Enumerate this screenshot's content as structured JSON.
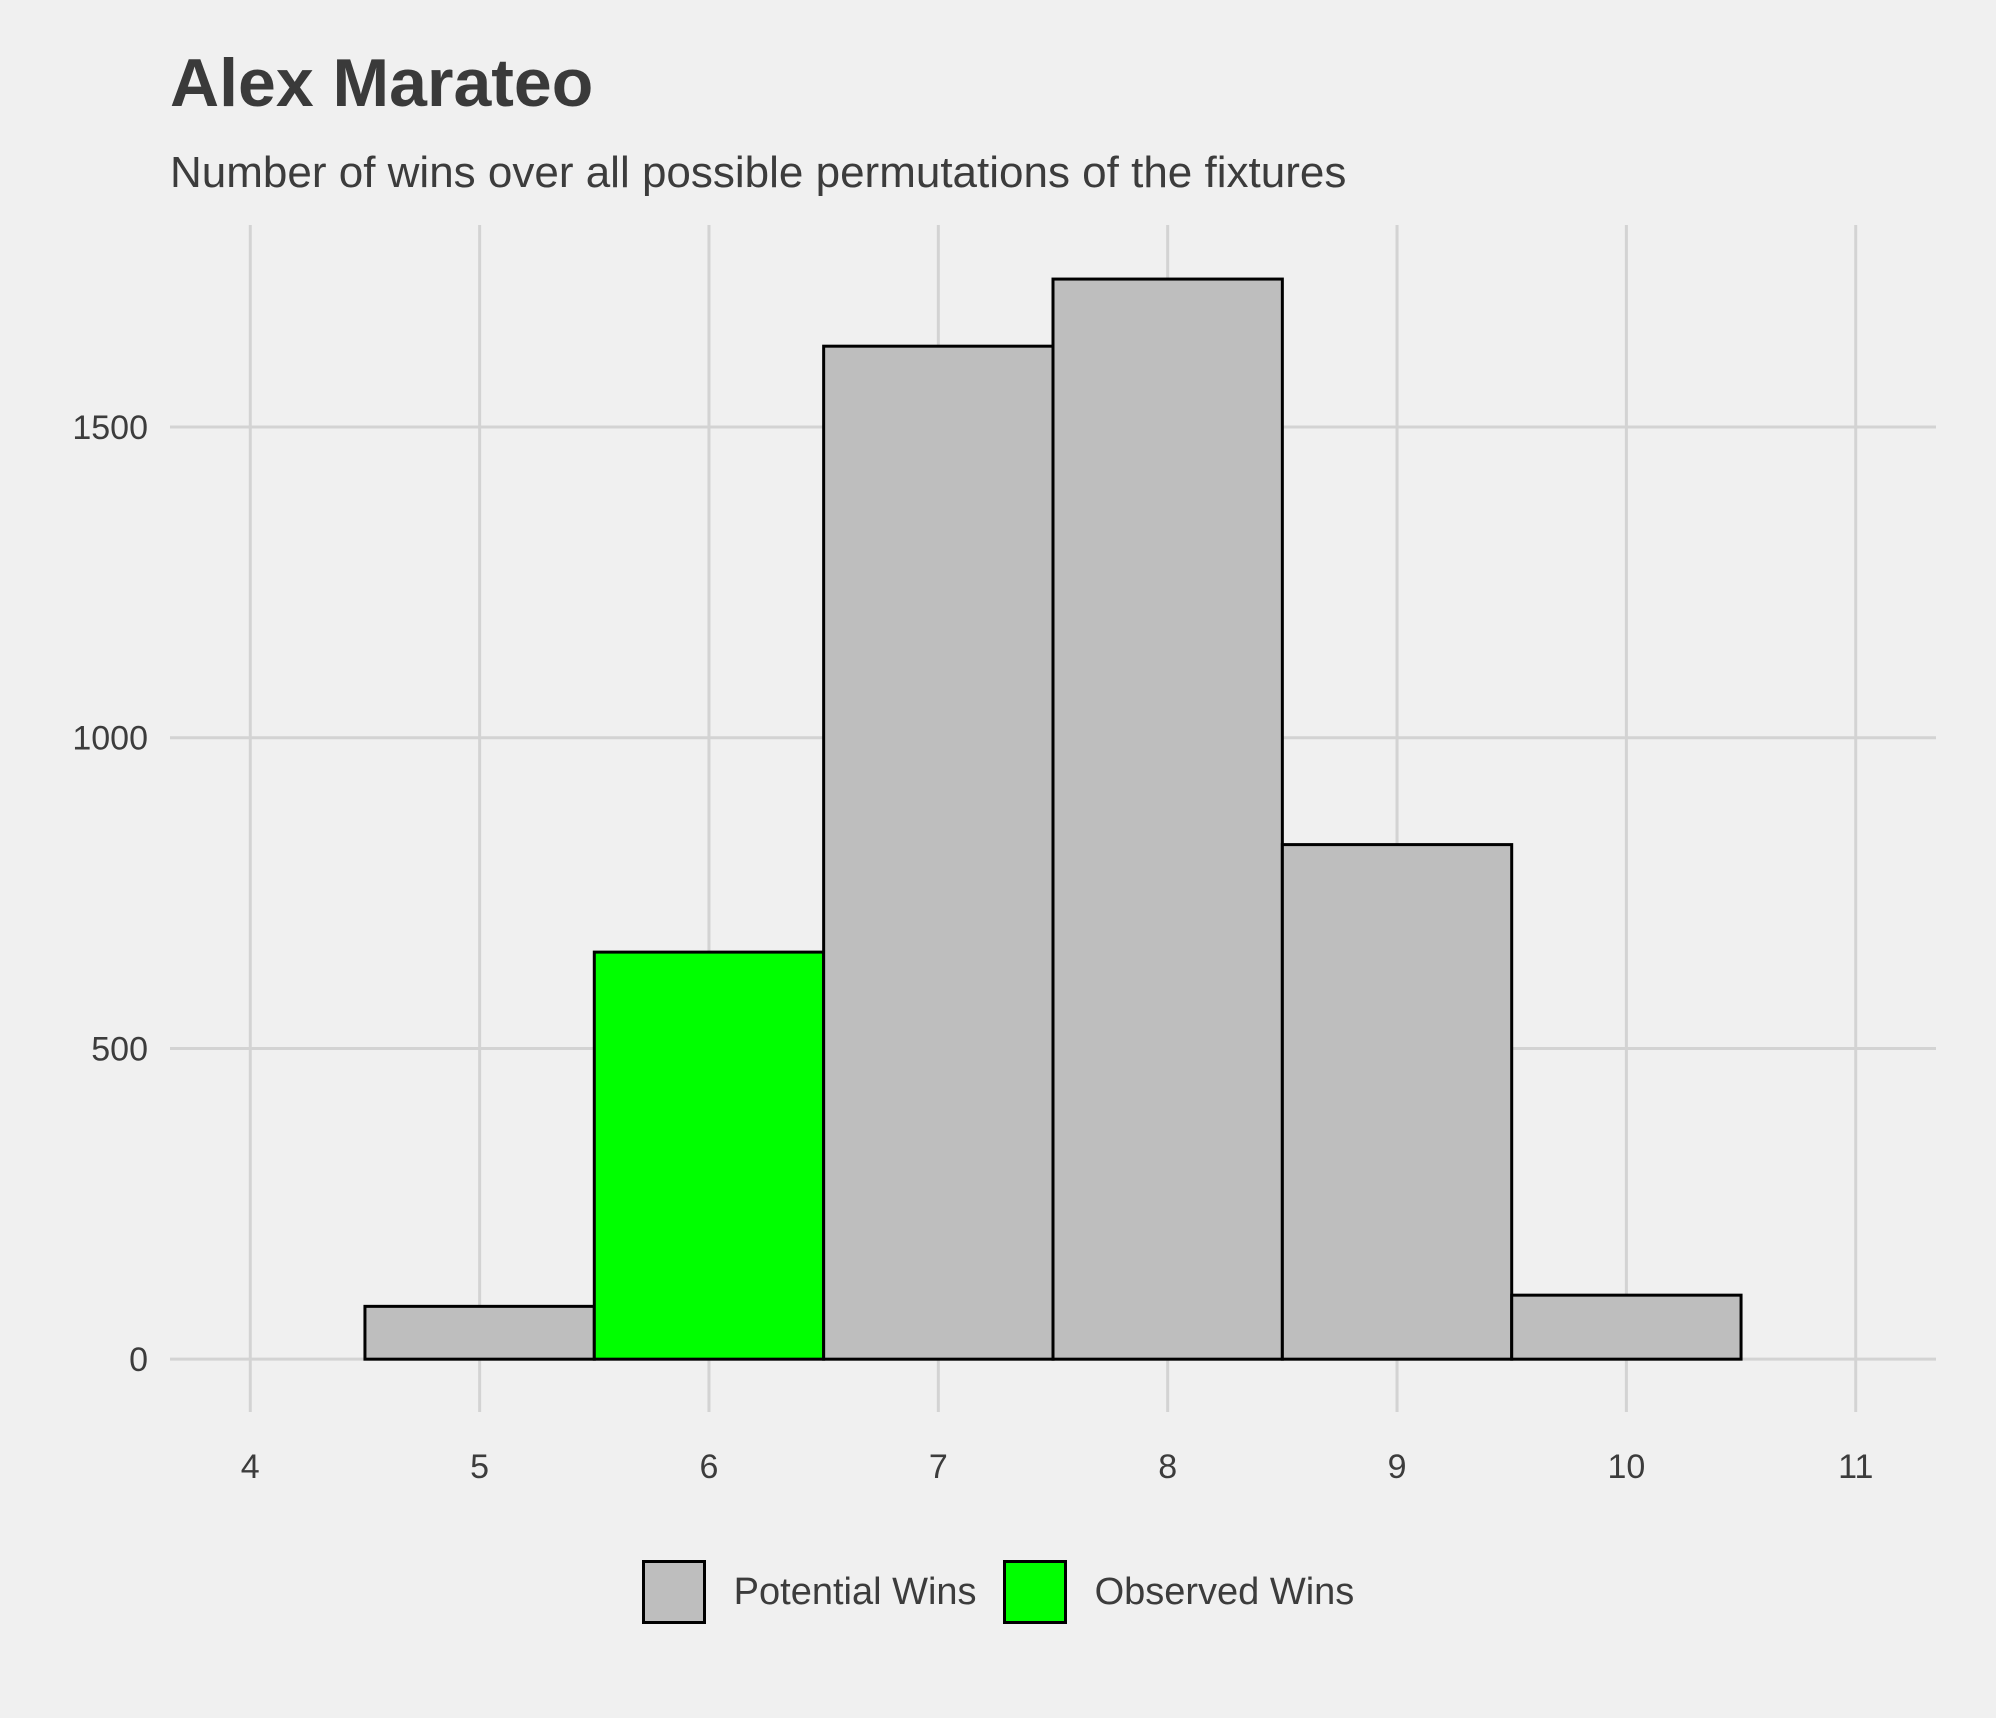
{
  "chart_data": {
    "type": "bar",
    "title": "Alex Marateo",
    "subtitle": "Number of wins over all possible permutations of the fixtures",
    "xlabel": "",
    "ylabel": "",
    "x_ticks": [
      4,
      5,
      6,
      7,
      8,
      9,
      10,
      11
    ],
    "y_ticks": [
      0,
      500,
      1000,
      1500
    ],
    "xlim": [
      3.65,
      11.35
    ],
    "ylim": [
      -85,
      1825
    ],
    "grid": true,
    "legend_position": "bottom",
    "bars": [
      {
        "x": 5,
        "value": 85,
        "series": "Potential Wins"
      },
      {
        "x": 6,
        "value": 655,
        "series": "Observed Wins"
      },
      {
        "x": 7,
        "value": 1630,
        "series": "Potential Wins"
      },
      {
        "x": 8,
        "value": 1738,
        "series": "Potential Wins"
      },
      {
        "x": 9,
        "value": 828,
        "series": "Potential Wins"
      },
      {
        "x": 10,
        "value": 103,
        "series": "Potential Wins"
      }
    ],
    "series": [
      {
        "name": "Potential Wins",
        "color": "#bebebe"
      },
      {
        "name": "Observed Wins",
        "color": "#00ff00"
      }
    ],
    "bar_outline_color": "#000000",
    "grid_color": "#d3d3d3"
  }
}
